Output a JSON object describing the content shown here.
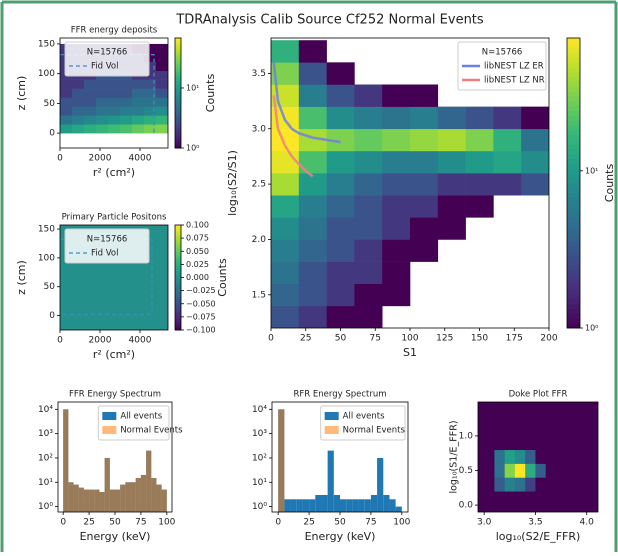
{
  "title": "TDRAnalysis Calib Source Cf252 Normal Events",
  "chart_data": [
    {
      "type": "heatmap",
      "title": "FFR energy deposits",
      "x_label": "r² (cm²)",
      "y_label": "z (cm)",
      "xlim": [
        0,
        5400
      ],
      "ylim": [
        -25,
        160
      ],
      "xticks": [
        0,
        2000,
        4000
      ],
      "yticks": [
        0,
        50,
        100,
        150
      ],
      "x_bins": [
        0,
        600,
        1200,
        1800,
        2400,
        3000,
        3600,
        4200,
        4800,
        5400
      ],
      "y_bins": [
        0,
        15,
        30,
        45,
        60,
        75,
        90,
        105,
        120,
        135,
        150
      ],
      "counts": [
        [
          10,
          12,
          14,
          16,
          18,
          20,
          24,
          28,
          30
        ],
        [
          5,
          6,
          7,
          8,
          9,
          10,
          12,
          14,
          16
        ],
        [
          3,
          4,
          4,
          5,
          5,
          6,
          6,
          7,
          8
        ],
        [
          3,
          3,
          3,
          4,
          4,
          4,
          5,
          5,
          5
        ],
        [
          2,
          3,
          3,
          3,
          3,
          3,
          4,
          4,
          3
        ],
        [
          2,
          2,
          3,
          3,
          3,
          3,
          3,
          3,
          2
        ],
        [
          2,
          2,
          2,
          3,
          3,
          3,
          2,
          2,
          2
        ],
        [
          2,
          2,
          2,
          2,
          2,
          2,
          2,
          2,
          1
        ],
        [
          2,
          2,
          2,
          2,
          2,
          2,
          2,
          1,
          1
        ],
        [
          2,
          2,
          2,
          2,
          2,
          2,
          1,
          1,
          1
        ]
      ],
      "series": [
        {
          "name": "Fid Vol",
          "color": "#3a8fbf",
          "dash": true,
          "x": [
            0,
            4700,
            4700
          ],
          "values": [
            132,
            132,
            0
          ]
        }
      ],
      "legend_title": "N=15766",
      "legend": "upper left",
      "colorbar": {
        "label": "Counts",
        "log": true,
        "lim": [
          1,
          68
        ],
        "ticks": [
          {
            "value": 1,
            "label": "10⁰"
          },
          {
            "value": 10,
            "label": "10¹"
          }
        ]
      }
    },
    {
      "type": "heatmap",
      "title": "Primary Particle Positons",
      "x_label": "r² (cm²)",
      "y_label": "z (cm)",
      "xlim": [
        0,
        5400
      ],
      "ylim": [
        -25,
        157
      ],
      "xticks": [
        0,
        2000,
        4000
      ],
      "yticks": [
        0,
        50,
        100,
        150
      ],
      "x_bins": [
        0,
        5400
      ],
      "y_bins": [
        -25,
        157
      ],
      "counts": [
        [
          0
        ]
      ],
      "series": [
        {
          "name": "Fid Vol",
          "color": "#3a8fbf",
          "dash": true,
          "x": [
            0,
            4600,
            4600,
            0
          ],
          "values": [
            132,
            132,
            2,
            2
          ]
        }
      ],
      "legend_title": "N=15766",
      "legend": "upper left",
      "colorbar": {
        "label": "Counts",
        "log": false,
        "lim": [
          -0.1,
          0.1
        ],
        "ticks": [
          {
            "value": 0.1,
            "label": "0.100"
          },
          {
            "value": 0.075,
            "label": "0.075"
          },
          {
            "value": 0.05,
            "label": "0.050"
          },
          {
            "value": 0.025,
            "label": "0.025"
          },
          {
            "value": 0,
            "label": "0.000"
          },
          {
            "value": -0.025,
            "label": "−0.025"
          },
          {
            "value": -0.05,
            "label": "−0.050"
          },
          {
            "value": -0.075,
            "label": "−0.075"
          },
          {
            "value": -0.1,
            "label": "−0.100"
          }
        ]
      }
    },
    {
      "type": "heatmap",
      "x_label": "S1",
      "y_label": "log₁₀(S2/S1)",
      "xlim": [
        0,
        200
      ],
      "ylim": [
        1.2,
        3.82
      ],
      "xticks": [
        0,
        25,
        50,
        75,
        100,
        125,
        150,
        175,
        200
      ],
      "yticks": [
        1.5,
        {
          "value": 2,
          "label": "2.0"
        },
        2.5,
        {
          "value": 3,
          "label": "3.0"
        },
        3.5
      ],
      "x_bins": [
        0,
        20,
        40,
        60,
        80,
        100,
        120,
        140,
        160,
        180,
        200
      ],
      "y_bins": [
        1.2,
        1.4,
        1.6,
        1.8,
        2.0,
        2.2,
        2.4,
        2.6,
        2.8,
        3.0,
        3.2,
        3.4,
        3.6,
        3.8
      ],
      "counts": [
        [
          3,
          2,
          1,
          1,
          0,
          0,
          0,
          0,
          0,
          0
        ],
        [
          4,
          3,
          2,
          1,
          1,
          0,
          0,
          0,
          0,
          0
        ],
        [
          5,
          3,
          2,
          2,
          1,
          0,
          0,
          0,
          0,
          0
        ],
        [
          6,
          4,
          3,
          2,
          1,
          1,
          0,
          0,
          0,
          0
        ],
        [
          8,
          5,
          3,
          3,
          2,
          1,
          1,
          0,
          0,
          0
        ],
        [
          12,
          6,
          4,
          3,
          2,
          2,
          1,
          1,
          0,
          0
        ],
        [
          40,
          10,
          6,
          4,
          3,
          3,
          2,
          2,
          2,
          3
        ],
        [
          60,
          20,
          10,
          8,
          6,
          6,
          8,
          10,
          12,
          8
        ],
        [
          70,
          40,
          30,
          25,
          30,
          35,
          40,
          30,
          15,
          5
        ],
        [
          65,
          20,
          8,
          6,
          5,
          6,
          4,
          3,
          2,
          1
        ],
        [
          50,
          6,
          3,
          2,
          1,
          1,
          0,
          0,
          0,
          0
        ],
        [
          30,
          3,
          1,
          0,
          0,
          0,
          0,
          0,
          0,
          0
        ],
        [
          15,
          1,
          0,
          0,
          0,
          0,
          0,
          0,
          0,
          0
        ]
      ],
      "series": [
        {
          "name": "libNEST LZ ER",
          "color": "#6f7fe8",
          "x": [
            2,
            5,
            10,
            15,
            20,
            30,
            40,
            50
          ],
          "values": [
            3.6,
            3.25,
            3.08,
            3.0,
            2.96,
            2.92,
            2.9,
            2.88
          ]
        },
        {
          "name": "libNEST LZ NR",
          "color": "#f08080",
          "x": [
            2,
            5,
            10,
            15,
            20,
            25,
            30
          ],
          "values": [
            3.3,
            3.0,
            2.85,
            2.75,
            2.68,
            2.62,
            2.57
          ]
        }
      ],
      "legend_title": "N=15766",
      "legend": "upper right",
      "colorbar": {
        "label": "Counts",
        "log": true,
        "lim": [
          1,
          70
        ],
        "ticks": [
          {
            "value": 1,
            "label": "10⁰"
          },
          {
            "value": 10,
            "label": "10¹"
          }
        ]
      }
    },
    {
      "type": "histogram",
      "title": "FFR Energy Spectrum",
      "x_label": "Energy (keV)",
      "log_y": true,
      "xlim": [
        -5,
        105
      ],
      "ylim": [
        0.6,
        20000
      ],
      "xticks": [
        0,
        25,
        50,
        75,
        100
      ],
      "yticks": [
        {
          "value": 1,
          "label": "10⁰"
        },
        {
          "value": 10,
          "label": "10¹"
        },
        {
          "value": 100,
          "label": "10²"
        },
        {
          "value": 1000,
          "label": "10³"
        },
        {
          "value": 10000,
          "label": "10⁴"
        }
      ],
      "bins": [
        0,
        5,
        10,
        15,
        20,
        25,
        30,
        35,
        40,
        45,
        50,
        55,
        60,
        65,
        70,
        75,
        80,
        85,
        90,
        95,
        100
      ],
      "series": [
        {
          "name": "All events",
          "color": "#1f77b4",
          "alpha": 1,
          "values": [
            10000,
            10,
            8,
            6,
            5,
            5,
            5,
            4,
            100,
            5,
            5,
            8,
            10,
            10,
            15,
            20,
            200,
            15,
            8,
            5
          ]
        },
        {
          "name": "Normal Events",
          "color": "#ff7f0e",
          "alpha": 0.55,
          "values": [
            10000,
            10,
            8,
            6,
            5,
            5,
            5,
            4,
            100,
            5,
            5,
            8,
            10,
            10,
            15,
            20,
            200,
            15,
            8,
            5
          ]
        }
      ],
      "legend": "upper right"
    },
    {
      "type": "histogram",
      "title": "RFR Energy Spectrum",
      "x_label": "Energy (keV)",
      "log_y": true,
      "xlim": [
        -5,
        105
      ],
      "ylim": [
        0.6,
        20000
      ],
      "xticks": [
        0,
        25,
        50,
        75,
        100
      ],
      "yticks": [
        {
          "value": 1,
          "label": "10⁰"
        },
        {
          "value": 10,
          "label": "10¹"
        },
        {
          "value": 100,
          "label": "10²"
        },
        {
          "value": 1000,
          "label": "10³"
        },
        {
          "value": 10000,
          "label": "10⁴"
        }
      ],
      "bins": [
        0,
        5,
        10,
        15,
        20,
        25,
        30,
        35,
        40,
        45,
        50,
        55,
        60,
        65,
        70,
        75,
        80,
        85,
        90,
        95,
        100
      ],
      "series": [
        {
          "name": "All events",
          "color": "#1f77b4",
          "alpha": 1,
          "values": [
            10000,
            2,
            2,
            2,
            2,
            2,
            3,
            3,
            200,
            3,
            2,
            2,
            2,
            2,
            2,
            3,
            100,
            3,
            2,
            1
          ]
        },
        {
          "name": "Normal Events",
          "color": "#ff7f0e",
          "alpha": 0.55,
          "values": [
            10000,
            0,
            0,
            0,
            0,
            0,
            0,
            0,
            0,
            0,
            0,
            0,
            0,
            0,
            0,
            0,
            0,
            0,
            0,
            0
          ]
        }
      ],
      "legend": "upper right"
    },
    {
      "type": "heatmap",
      "title": "Doke Plot FFR",
      "x_label": "log₁₀(S2/E_FFR)",
      "y_label": "log₁₀(S1/E_FFR)",
      "xlim": [
        2.94,
        4.11
      ],
      "ylim": [
        -0.1,
        1.49
      ],
      "facecolor": "#440154",
      "xticks": [
        {
          "value": 3,
          "label": "3.0"
        },
        3.5,
        {
          "value": 4,
          "label": "4.0"
        }
      ],
      "yticks": [
        {
          "value": 0,
          "label": "0.0"
        },
        0.5,
        {
          "value": 1,
          "label": "1.0"
        }
      ],
      "x_bins": [
        3.0,
        3.1,
        3.2,
        3.3,
        3.4,
        3.5,
        3.6,
        3.7,
        3.8,
        3.9,
        4.0,
        4.1
      ],
      "y_bins": [
        0,
        0.2,
        0.4,
        0.6,
        0.8,
        1.0,
        1.2
      ],
      "counts": [
        [
          0,
          1,
          1,
          1,
          0,
          0,
          0,
          0,
          0,
          0,
          0
        ],
        [
          1,
          3,
          5,
          4,
          2,
          1,
          0,
          0,
          0,
          0,
          0
        ],
        [
          1,
          4,
          20,
          40,
          10,
          3,
          1,
          0,
          0,
          0,
          0
        ],
        [
          1,
          4,
          8,
          6,
          3,
          1,
          1,
          0,
          0,
          0,
          0
        ],
        [
          0,
          1,
          1,
          1,
          1,
          0,
          0,
          0,
          0,
          0,
          0
        ],
        [
          0,
          0,
          0,
          0,
          0,
          0,
          0,
          0,
          0,
          0,
          0
        ]
      ]
    }
  ]
}
